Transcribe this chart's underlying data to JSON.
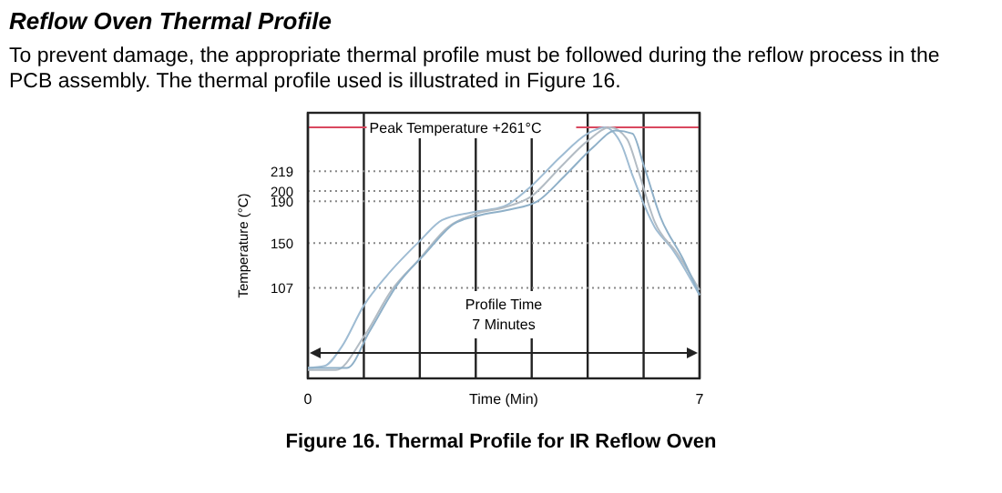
{
  "chart_data": {
    "type": "line",
    "title": "Reflow Oven Thermal Profile",
    "subtitle": "To prevent damage, the appropriate thermal profile must be followed during the reflow process in the PCB assembly. The thermal profile used is illustrated in Figure 16.",
    "xlabel": "Time (Min)",
    "ylabel": "Temperature (°C)",
    "xlim": [
      0,
      7
    ],
    "xticks": [
      0,
      {
        "value": 1,
        "label": null
      },
      {
        "value": 2,
        "label": null
      },
      {
        "value": 3,
        "label": null
      },
      {
        "value": 4,
        "label": null
      },
      {
        "value": 5,
        "label": null
      },
      {
        "value": 6,
        "label": null
      },
      7
    ],
    "ylim": [
      20,
      275
    ],
    "yticks": [
      107,
      150,
      190,
      200,
      219
    ],
    "grid": true,
    "line_style": "solid",
    "ref_lines": [
      {
        "axis": "y",
        "value": 261,
        "label": "Peak Temperature +261°C",
        "color": "#d9485f"
      }
    ],
    "annotations": [
      "Profile Time\n7 Minutes",
      "Figure 16. Thermal Profile for IR Reflow Oven"
    ],
    "series": [
      {
        "color": "#9fbcd3",
        "x": [
          0,
          0.3,
          0.6,
          1,
          1.4,
          2,
          2.4,
          3,
          3.5,
          4,
          4.5,
          5,
          5.3,
          5.6,
          5.8,
          6.2,
          6.5,
          7
        ],
        "values": [
          30,
          32,
          50,
          90,
          118,
          152,
          172,
          180,
          185,
          205,
          232,
          255,
          261,
          245,
          215,
          165,
          145,
          100
        ]
      },
      {
        "color": "#b3bcc4",
        "x": [
          0,
          0.5,
          1,
          1.5,
          2,
          2.5,
          3,
          3.5,
          4,
          4.5,
          5,
          5.4,
          5.7,
          5.9,
          6.2,
          6.6,
          7
        ],
        "values": [
          28,
          28,
          60,
          105,
          135,
          165,
          178,
          184,
          195,
          222,
          248,
          261,
          250,
          220,
          170,
          140,
          105
        ]
      },
      {
        "color": "#8fb0c8",
        "x": [
          0,
          0.7,
          1.1,
          1.6,
          2.1,
          2.6,
          3.1,
          3.6,
          4.1,
          4.6,
          5.1,
          5.5,
          5.8,
          6,
          6.3,
          6.7,
          7
        ],
        "values": [
          30,
          30,
          65,
          110,
          140,
          168,
          177,
          182,
          190,
          215,
          242,
          258,
          255,
          225,
          175,
          135,
          100
        ]
      }
    ]
  }
}
